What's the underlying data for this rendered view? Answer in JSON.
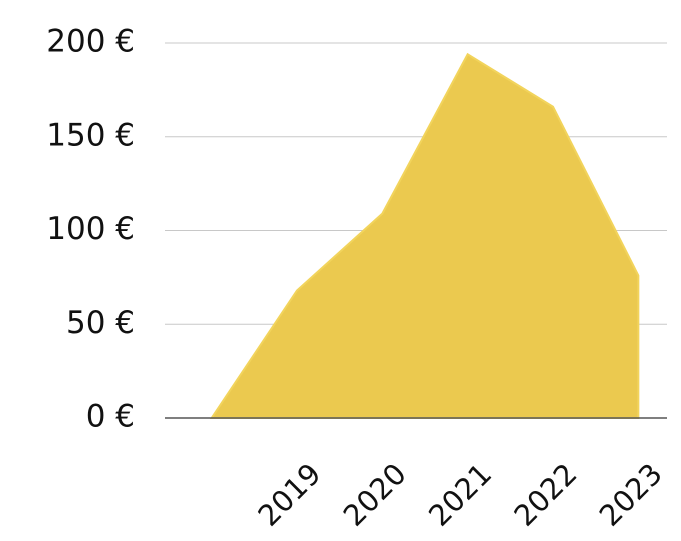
{
  "chart_data": {
    "type": "area",
    "categories": [
      null,
      "2019",
      "2020",
      "2021",
      "2022",
      "2023"
    ],
    "values": [
      0,
      68,
      109,
      194,
      166,
      76
    ],
    "color": "#ebc94f",
    "ylim": [
      0,
      200
    ],
    "yticks": [
      {
        "value": 0,
        "label": "0 €"
      },
      {
        "value": 50,
        "label": "50 €"
      },
      {
        "value": 100,
        "label": "100 €"
      },
      {
        "value": 150,
        "label": "150 €"
      },
      {
        "value": 200,
        "label": "200 €"
      }
    ],
    "grid": true
  }
}
